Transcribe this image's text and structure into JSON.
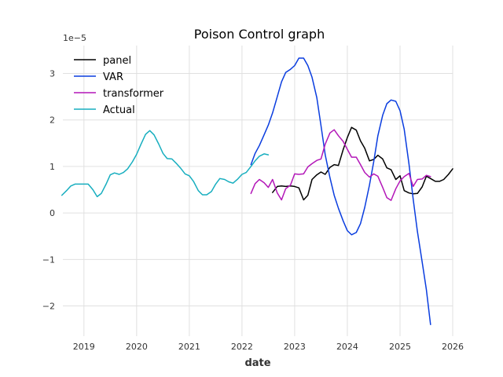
{
  "chart_data": {
    "type": "line",
    "title": "Poison Control graph",
    "xlabel": "date",
    "ylabel": "",
    "y_offset_text": "1e−5",
    "y_scale_factor": 1e-05,
    "xlim": [
      2018.6,
      2026.0
    ],
    "ylim": [
      -2.65,
      3.6
    ],
    "x_ticks": [
      2019,
      2020,
      2021,
      2022,
      2023,
      2024,
      2025,
      2026
    ],
    "x_tick_labels": [
      "2019",
      "2020",
      "2021",
      "2022",
      "2023",
      "2024",
      "2025",
      "2026"
    ],
    "y_ticks": [
      -2,
      -1,
      0,
      1,
      2,
      3
    ],
    "y_tick_labels": [
      "−2",
      "−1",
      "0",
      "1",
      "2",
      "3"
    ],
    "grid": true,
    "legend_position": "top-left",
    "series": [
      {
        "name": "panel",
        "color": "#000000",
        "x": [
          2022.58,
          2022.67,
          2022.75,
          2022.83,
          2022.92,
          2023.0,
          2023.08,
          2023.17,
          2023.25,
          2023.33,
          2023.42,
          2023.5,
          2023.58,
          2023.67,
          2023.75,
          2023.83,
          2023.92,
          2024.0,
          2024.08,
          2024.17,
          2024.25,
          2024.33,
          2024.42,
          2024.5,
          2024.58,
          2024.67,
          2024.75,
          2024.83,
          2024.92,
          2025.0,
          2025.08,
          2025.17,
          2025.25,
          2025.33,
          2025.42,
          2025.5,
          2025.58,
          2025.67,
          2025.75,
          2025.83,
          2025.92,
          2026.0
        ],
        "y": [
          0.44,
          0.57,
          0.58,
          0.57,
          0.58,
          0.57,
          0.54,
          0.28,
          0.38,
          0.72,
          0.82,
          0.88,
          0.83,
          0.98,
          1.04,
          1.02,
          1.36,
          1.62,
          1.84,
          1.78,
          1.55,
          1.39,
          1.12,
          1.15,
          1.24,
          1.16,
          0.97,
          0.93,
          0.72,
          0.8,
          0.48,
          0.43,
          0.41,
          0.42,
          0.56,
          0.79,
          0.74,
          0.68,
          0.68,
          0.72,
          0.83,
          0.95
        ]
      },
      {
        "name": "VAR",
        "color": "#0a3ddf",
        "x": [
          2022.17,
          2022.25,
          2022.33,
          2022.42,
          2022.5,
          2022.58,
          2022.67,
          2022.75,
          2022.83,
          2022.92,
          2023.0,
          2023.08,
          2023.17,
          2023.25,
          2023.33,
          2023.42,
          2023.5,
          2023.58,
          2023.67,
          2023.75,
          2023.83,
          2023.92,
          2024.0,
          2024.08,
          2024.17,
          2024.25,
          2024.33,
          2024.42,
          2024.5,
          2024.58,
          2024.67,
          2024.75,
          2024.83,
          2024.92,
          2025.0,
          2025.08,
          2025.17,
          2025.25,
          2025.33,
          2025.42,
          2025.5,
          2025.58
        ],
        "y": [
          1.04,
          1.28,
          1.45,
          1.68,
          1.89,
          2.15,
          2.5,
          2.82,
          3.02,
          3.09,
          3.17,
          3.33,
          3.33,
          3.17,
          2.92,
          2.48,
          1.88,
          1.25,
          0.76,
          0.38,
          0.1,
          -0.17,
          -0.38,
          -0.47,
          -0.42,
          -0.23,
          0.12,
          0.6,
          1.1,
          1.66,
          2.1,
          2.35,
          2.43,
          2.4,
          2.2,
          1.8,
          1.05,
          0.3,
          -0.4,
          -1.05,
          -1.65,
          -2.4
        ]
      },
      {
        "name": "transformer",
        "color": "#b317b8",
        "x": [
          2022.17,
          2022.25,
          2022.33,
          2022.42,
          2022.5,
          2022.58,
          2022.67,
          2022.75,
          2022.83,
          2022.92,
          2023.0,
          2023.08,
          2023.17,
          2023.25,
          2023.33,
          2023.42,
          2023.5,
          2023.58,
          2023.67,
          2023.75,
          2023.83,
          2023.92,
          2024.0,
          2024.08,
          2024.17,
          2024.25,
          2024.33,
          2024.42,
          2024.5,
          2024.58,
          2024.67,
          2024.75,
          2024.83,
          2024.92,
          2025.0,
          2025.08,
          2025.17,
          2025.25,
          2025.33,
          2025.42,
          2025.5,
          2025.58
        ],
        "y": [
          0.42,
          0.63,
          0.72,
          0.65,
          0.55,
          0.72,
          0.43,
          0.28,
          0.52,
          0.6,
          0.84,
          0.83,
          0.84,
          0.99,
          1.06,
          1.13,
          1.16,
          1.48,
          1.72,
          1.79,
          1.66,
          1.54,
          1.37,
          1.2,
          1.2,
          1.04,
          0.87,
          0.77,
          0.84,
          0.79,
          0.55,
          0.33,
          0.27,
          0.52,
          0.69,
          0.78,
          0.85,
          0.57,
          0.72,
          0.73,
          0.81,
          0.78
        ]
      },
      {
        "name": "Actual",
        "color": "#17aebf",
        "x": [
          2018.58,
          2018.67,
          2018.75,
          2018.83,
          2018.92,
          2019.0,
          2019.08,
          2019.17,
          2019.25,
          2019.33,
          2019.42,
          2019.5,
          2019.58,
          2019.67,
          2019.75,
          2019.83,
          2019.92,
          2020.0,
          2020.08,
          2020.17,
          2020.25,
          2020.33,
          2020.42,
          2020.5,
          2020.58,
          2020.67,
          2020.75,
          2020.83,
          2020.92,
          2021.0,
          2021.08,
          2021.17,
          2021.25,
          2021.33,
          2021.42,
          2021.5,
          2021.58,
          2021.67,
          2021.75,
          2021.83,
          2021.92,
          2022.0,
          2022.08,
          2022.17,
          2022.25,
          2022.33,
          2022.42,
          2022.5
        ],
        "y": [
          0.38,
          0.48,
          0.58,
          0.62,
          0.62,
          0.62,
          0.62,
          0.5,
          0.35,
          0.42,
          0.62,
          0.82,
          0.86,
          0.83,
          0.87,
          0.95,
          1.1,
          1.26,
          1.47,
          1.69,
          1.77,
          1.68,
          1.48,
          1.28,
          1.17,
          1.16,
          1.07,
          0.97,
          0.84,
          0.8,
          0.68,
          0.48,
          0.39,
          0.39,
          0.46,
          0.62,
          0.74,
          0.72,
          0.67,
          0.64,
          0.73,
          0.83,
          0.87,
          1.0,
          1.12,
          1.22,
          1.27,
          1.25
        ]
      }
    ]
  }
}
